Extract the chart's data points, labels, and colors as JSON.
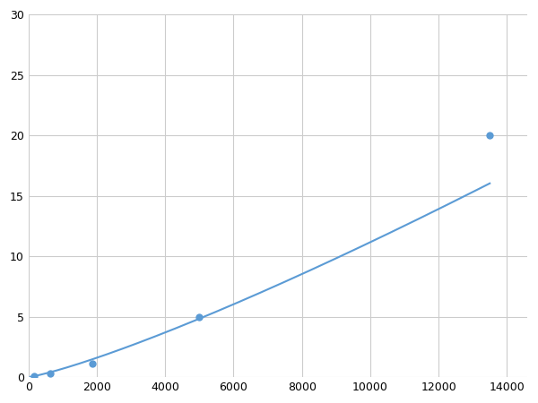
{
  "x_points": [
    156,
    625,
    1875,
    5000,
    13500
  ],
  "y_points": [
    0.1,
    0.3,
    1.1,
    5.0,
    20.0
  ],
  "xlim": [
    0,
    14600
  ],
  "ylim": [
    0,
    30
  ],
  "xticks": [
    0,
    2000,
    4000,
    6000,
    8000,
    10000,
    12000,
    14000
  ],
  "yticks": [
    0,
    5,
    10,
    15,
    20,
    25,
    30
  ],
  "line_color": "#5b9bd5",
  "marker_color": "#5b9bd5",
  "marker_size": 6,
  "line_width": 1.5,
  "grid_color": "#cccccc",
  "background_color": "#ffffff",
  "figsize": [
    6.0,
    4.5
  ],
  "dpi": 100
}
